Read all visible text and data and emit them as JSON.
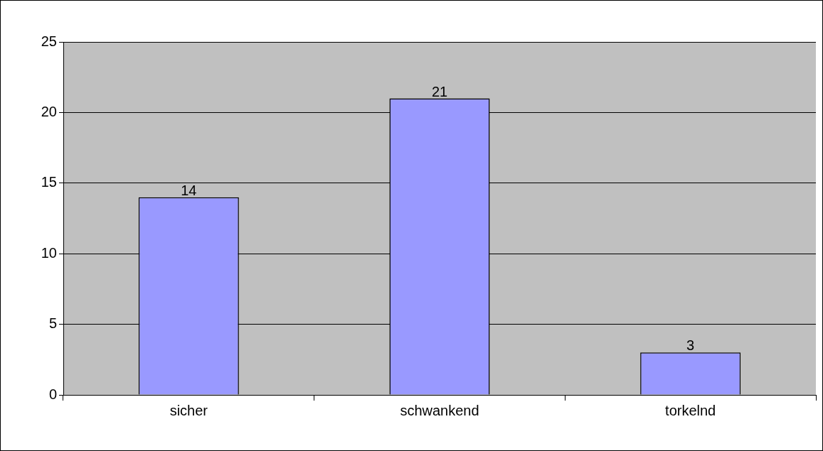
{
  "chart_data": {
    "type": "bar",
    "categories": [
      "sicher",
      "schwankend",
      "torkelnd"
    ],
    "values": [
      14,
      21,
      3
    ],
    "color": "#9999ff",
    "ylim": [
      0,
      25
    ],
    "yticks": [
      0,
      5,
      10,
      15,
      20,
      25
    ],
    "grid": "y",
    "data_labels": true,
    "legend": false
  }
}
